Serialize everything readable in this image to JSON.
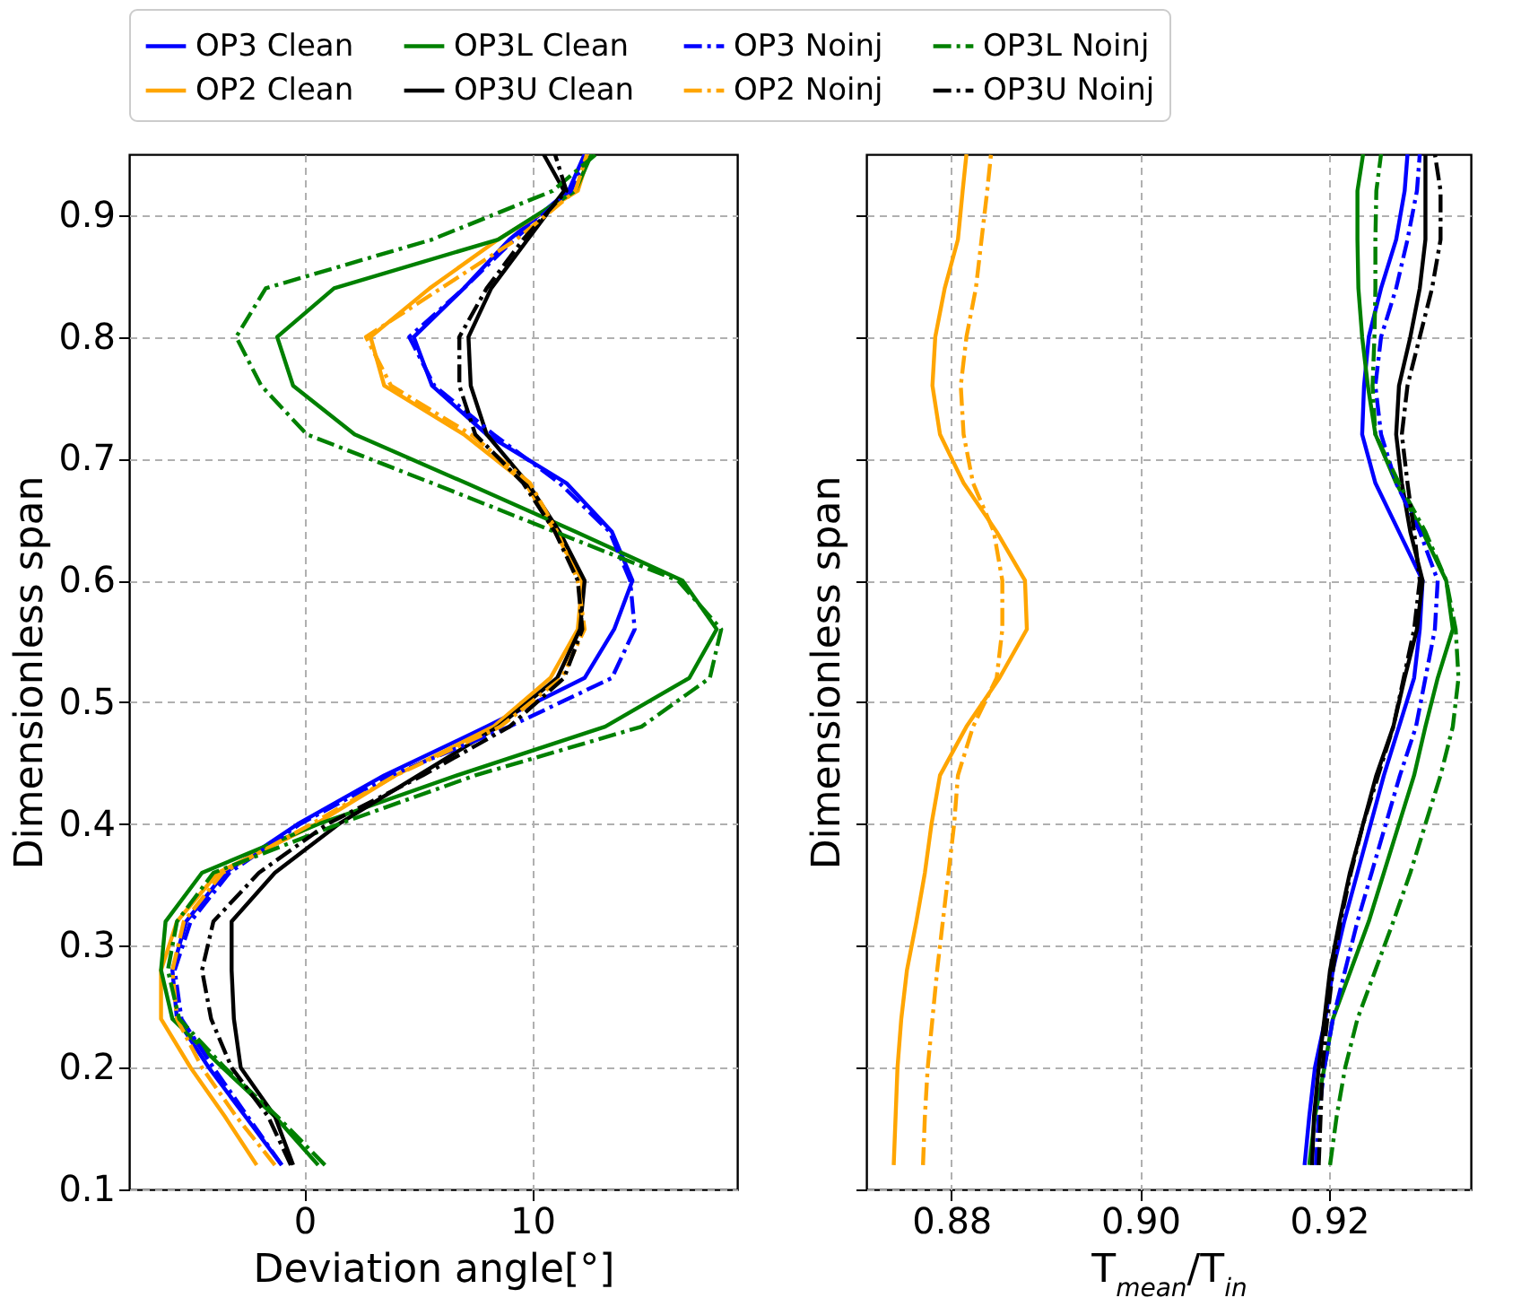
{
  "chart_data": [
    {
      "type": "line",
      "xlabel": "Deviation angle[°]",
      "ylabel": "Dimensionless span",
      "xlim": [
        -7.7,
        19
      ],
      "xticks": [
        0,
        10
      ],
      "ylim": [
        0.1,
        0.95
      ],
      "yticks": [
        0.1,
        0.2,
        0.3,
        0.4,
        0.5,
        0.6,
        0.7,
        0.8,
        0.9
      ],
      "grid": true,
      "legend": "top",
      "series": [
        {
          "name": "OP3 Clean",
          "color": "#0000ff",
          "line_style": "solid",
          "x": [
            -1.0,
            -2.6,
            -4.2,
            -5.6,
            -5.8,
            -5.2,
            -3.5,
            -0.3,
            3.5,
            8.0,
            12.3,
            13.6,
            14.4,
            13.5,
            11.5,
            8.0,
            5.6,
            4.8,
            7.0,
            9.0,
            11.6,
            12.3
          ],
          "values": [
            0.12,
            0.16,
            0.2,
            0.24,
            0.28,
            0.32,
            0.36,
            0.4,
            0.44,
            0.48,
            0.52,
            0.56,
            0.6,
            0.64,
            0.68,
            0.72,
            0.76,
            0.8,
            0.84,
            0.88,
            0.92,
            0.95
          ]
        },
        {
          "name": "OP2 Clean",
          "color": "#ffa500",
          "line_style": "solid",
          "x": [
            -2.1,
            -3.5,
            -5.0,
            -6.3,
            -6.3,
            -5.6,
            -3.8,
            0.5,
            4.0,
            8.3,
            10.8,
            12.0,
            12.2,
            11.0,
            9.7,
            7.0,
            3.5,
            2.9,
            5.5,
            8.5,
            12.0,
            12.5
          ],
          "values": [
            0.12,
            0.16,
            0.2,
            0.24,
            0.28,
            0.32,
            0.36,
            0.4,
            0.44,
            0.48,
            0.52,
            0.56,
            0.6,
            0.64,
            0.68,
            0.72,
            0.76,
            0.8,
            0.84,
            0.88,
            0.92,
            0.95
          ]
        },
        {
          "name": "OP3L Clean",
          "color": "#008000",
          "line_style": "solid",
          "x": [
            0.6,
            -1.3,
            -3.6,
            -5.8,
            -6.3,
            -6.1,
            -4.5,
            0.6,
            6.7,
            13.2,
            16.9,
            18.1,
            16.6,
            11.9,
            7.1,
            2.2,
            -0.5,
            -1.2,
            1.3,
            8.5,
            11.9,
            12.6
          ],
          "values": [
            0.12,
            0.16,
            0.2,
            0.24,
            0.28,
            0.32,
            0.36,
            0.4,
            0.44,
            0.48,
            0.52,
            0.56,
            0.6,
            0.64,
            0.68,
            0.72,
            0.76,
            0.8,
            0.84,
            0.88,
            0.92,
            0.95
          ]
        },
        {
          "name": "OP3U Clean",
          "color": "#000000",
          "line_style": "solid",
          "x": [
            -0.5,
            -1.3,
            -2.8,
            -3.1,
            -3.2,
            -3.2,
            -1.3,
            1.5,
            5.0,
            8.5,
            11.1,
            12.1,
            12.3,
            11.2,
            9.8,
            8.0,
            7.3,
            7.2,
            8.2,
            9.8,
            11.4,
            10.5
          ],
          "values": [
            0.12,
            0.16,
            0.2,
            0.24,
            0.28,
            0.32,
            0.36,
            0.4,
            0.44,
            0.48,
            0.52,
            0.56,
            0.6,
            0.64,
            0.68,
            0.72,
            0.76,
            0.8,
            0.84,
            0.88,
            0.92,
            0.95
          ]
        },
        {
          "name": "OP3 Noinj",
          "color": "#0000ff",
          "line_style": "dashdot",
          "x": [
            -1.0,
            -2.5,
            -4.0,
            -5.4,
            -5.7,
            -5.0,
            -3.3,
            -0.2,
            3.8,
            9.0,
            13.5,
            14.5,
            14.3,
            13.4,
            11.2,
            8.3,
            5.7,
            4.6,
            7.0,
            9.2,
            11.7,
            12.4
          ],
          "values": [
            0.12,
            0.16,
            0.2,
            0.24,
            0.28,
            0.32,
            0.36,
            0.4,
            0.44,
            0.48,
            0.52,
            0.56,
            0.6,
            0.64,
            0.68,
            0.72,
            0.76,
            0.8,
            0.84,
            0.88,
            0.92,
            0.95
          ]
        },
        {
          "name": "OP2 Noinj",
          "color": "#ffa500",
          "line_style": "dashdot",
          "x": [
            -1.3,
            -3.0,
            -4.5,
            -5.6,
            -5.8,
            -5.3,
            -3.6,
            0.3,
            4.0,
            8.6,
            11.3,
            12.3,
            12.0,
            11.1,
            9.9,
            7.3,
            3.8,
            2.7,
            6.0,
            9.3,
            11.9,
            12.4
          ],
          "values": [
            0.12,
            0.16,
            0.2,
            0.24,
            0.28,
            0.32,
            0.36,
            0.4,
            0.44,
            0.48,
            0.52,
            0.56,
            0.6,
            0.64,
            0.68,
            0.72,
            0.76,
            0.8,
            0.84,
            0.88,
            0.92,
            0.95
          ]
        },
        {
          "name": "OP3L Noinj",
          "color": "#008000",
          "line_style": "dashdot",
          "x": [
            0.9,
            -1.2,
            -3.5,
            -5.5,
            -6.0,
            -5.6,
            -4.0,
            1.5,
            7.5,
            14.8,
            17.8,
            18.3,
            16.4,
            11.0,
            5.6,
            0.1,
            -1.9,
            -3.0,
            -1.7,
            5.6,
            10.9,
            12.8
          ],
          "values": [
            0.12,
            0.16,
            0.2,
            0.24,
            0.28,
            0.32,
            0.36,
            0.4,
            0.44,
            0.48,
            0.52,
            0.56,
            0.6,
            0.64,
            0.68,
            0.72,
            0.76,
            0.8,
            0.84,
            0.88,
            0.92,
            0.95
          ]
        },
        {
          "name": "OP3U Noinj",
          "color": "#000000",
          "line_style": "dashdot",
          "x": [
            -0.6,
            -1.6,
            -3.2,
            -4.1,
            -4.5,
            -4.0,
            -2.0,
            1.0,
            5.2,
            9.0,
            11.4,
            12.2,
            12.0,
            11.0,
            9.6,
            7.5,
            6.8,
            6.8,
            8.0,
            9.6,
            11.5,
            11.0
          ],
          "values": [
            0.12,
            0.16,
            0.2,
            0.24,
            0.28,
            0.32,
            0.36,
            0.4,
            0.44,
            0.48,
            0.52,
            0.56,
            0.6,
            0.64,
            0.68,
            0.72,
            0.76,
            0.8,
            0.84,
            0.88,
            0.92,
            0.95
          ]
        }
      ]
    },
    {
      "type": "line",
      "xlabel": "T$_{mean}$/T$_{in}$",
      "ylabel": "Dimensionless span",
      "xlim": [
        0.871,
        0.935
      ],
      "xticks": [
        0.88,
        {
          "value": 0.9,
          "label": "0.90"
        },
        0.92
      ],
      "ylim": [
        0.1,
        0.95
      ],
      "yticks": [
        0.1,
        0.2,
        0.3,
        0.4,
        0.5,
        0.6,
        0.7,
        0.8,
        0.9
      ],
      "tick_labels": "x",
      "grid": true,
      "series": [
        {
          "color": "#0000ff",
          "line_style": "solid",
          "x": [
            0.9174,
            0.9179,
            0.9185,
            0.9196,
            0.9204,
            0.9216,
            0.923,
            0.9244,
            0.9258,
            0.9274,
            0.929,
            0.9296,
            0.9299,
            0.9274,
            0.9249,
            0.9235,
            0.9237,
            0.9242,
            0.9255,
            0.9271,
            0.928,
            0.9283
          ],
          "values": [
            0.12,
            0.16,
            0.2,
            0.24,
            0.28,
            0.32,
            0.36,
            0.4,
            0.44,
            0.48,
            0.52,
            0.56,
            0.6,
            0.64,
            0.68,
            0.72,
            0.76,
            0.8,
            0.84,
            0.88,
            0.92,
            0.95
          ]
        },
        {
          "color": "#ffa500",
          "line_style": "solid",
          "x": [
            0.8739,
            0.8741,
            0.8743,
            0.8747,
            0.8753,
            0.8763,
            0.8772,
            0.8779,
            0.8788,
            0.8816,
            0.8851,
            0.888,
            0.8878,
            0.8848,
            0.8813,
            0.8788,
            0.878,
            0.8783,
            0.8793,
            0.8807,
            0.8812,
            0.8816
          ],
          "values": [
            0.12,
            0.16,
            0.2,
            0.24,
            0.28,
            0.32,
            0.36,
            0.4,
            0.44,
            0.48,
            0.52,
            0.56,
            0.6,
            0.64,
            0.68,
            0.72,
            0.76,
            0.8,
            0.84,
            0.88,
            0.92,
            0.95
          ]
        },
        {
          "color": "#008000",
          "line_style": "solid",
          "x": [
            0.9179,
            0.9185,
            0.9195,
            0.9204,
            0.9223,
            0.9242,
            0.9258,
            0.9274,
            0.929,
            0.9302,
            0.9315,
            0.9331,
            0.9324,
            0.9299,
            0.9271,
            0.9249,
            0.9241,
            0.9235,
            0.9231,
            0.923,
            0.923,
            0.9236
          ],
          "values": [
            0.12,
            0.16,
            0.2,
            0.24,
            0.28,
            0.32,
            0.36,
            0.4,
            0.44,
            0.48,
            0.52,
            0.56,
            0.6,
            0.64,
            0.68,
            0.72,
            0.76,
            0.8,
            0.84,
            0.88,
            0.92,
            0.95
          ]
        },
        {
          "color": "#000000",
          "line_style": "solid",
          "x": [
            0.9182,
            0.9184,
            0.9189,
            0.9195,
            0.9201,
            0.9211,
            0.9222,
            0.9236,
            0.925,
            0.9268,
            0.928,
            0.9293,
            0.9299,
            0.9286,
            0.9277,
            0.9271,
            0.9274,
            0.9286,
            0.9296,
            0.9302,
            0.9302,
            0.9302
          ],
          "values": [
            0.12,
            0.16,
            0.2,
            0.24,
            0.28,
            0.32,
            0.36,
            0.4,
            0.44,
            0.48,
            0.52,
            0.56,
            0.6,
            0.64,
            0.68,
            0.72,
            0.76,
            0.8,
            0.84,
            0.88,
            0.92,
            0.95
          ]
        },
        {
          "color": "#0000ff",
          "line_style": "dashdot",
          "x": [
            0.9186,
            0.9189,
            0.9195,
            0.9204,
            0.9217,
            0.923,
            0.9245,
            0.926,
            0.9275,
            0.9292,
            0.9302,
            0.9312,
            0.9315,
            0.9296,
            0.9271,
            0.9255,
            0.9249,
            0.9255,
            0.9271,
            0.9283,
            0.9293,
            0.9296
          ],
          "values": [
            0.12,
            0.16,
            0.2,
            0.24,
            0.28,
            0.32,
            0.36,
            0.4,
            0.44,
            0.48,
            0.52,
            0.56,
            0.6,
            0.64,
            0.68,
            0.72,
            0.76,
            0.8,
            0.84,
            0.88,
            0.92,
            0.95
          ]
        },
        {
          "color": "#ffa500",
          "line_style": "dashdot",
          "x": [
            0.877,
            0.8772,
            0.8775,
            0.878,
            0.8785,
            0.8791,
            0.8797,
            0.8803,
            0.8807,
            0.8823,
            0.8848,
            0.8854,
            0.8854,
            0.8845,
            0.8823,
            0.8813,
            0.881,
            0.8816,
            0.8826,
            0.8832,
            0.8838,
            0.8842
          ],
          "values": [
            0.12,
            0.16,
            0.2,
            0.24,
            0.28,
            0.32,
            0.36,
            0.4,
            0.44,
            0.48,
            0.52,
            0.56,
            0.6,
            0.64,
            0.68,
            0.72,
            0.76,
            0.8,
            0.84,
            0.88,
            0.92,
            0.95
          ]
        },
        {
          "color": "#008000",
          "line_style": "dashdot",
          "x": [
            0.9201,
            0.9208,
            0.9217,
            0.923,
            0.9249,
            0.9268,
            0.9286,
            0.9302,
            0.9318,
            0.9331,
            0.9337,
            0.9334,
            0.9324,
            0.9302,
            0.9274,
            0.9249,
            0.9246,
            0.9248,
            0.9249,
            0.9249,
            0.925,
            0.9255
          ],
          "values": [
            0.12,
            0.16,
            0.2,
            0.24,
            0.28,
            0.32,
            0.36,
            0.4,
            0.44,
            0.48,
            0.52,
            0.56,
            0.6,
            0.64,
            0.68,
            0.72,
            0.76,
            0.8,
            0.84,
            0.88,
            0.92,
            0.95
          ]
        },
        {
          "color": "#000000",
          "line_style": "dashdot",
          "x": [
            0.9189,
            0.9191,
            0.9193,
            0.9198,
            0.9204,
            0.9212,
            0.9223,
            0.9236,
            0.9252,
            0.9268,
            0.9279,
            0.929,
            0.9296,
            0.929,
            0.9283,
            0.9277,
            0.9283,
            0.9296,
            0.9309,
            0.9318,
            0.9318,
            0.9312
          ],
          "values": [
            0.12,
            0.16,
            0.2,
            0.24,
            0.28,
            0.32,
            0.36,
            0.4,
            0.44,
            0.48,
            0.52,
            0.56,
            0.6,
            0.64,
            0.68,
            0.72,
            0.76,
            0.8,
            0.84,
            0.88,
            0.92,
            0.95
          ]
        }
      ]
    }
  ]
}
